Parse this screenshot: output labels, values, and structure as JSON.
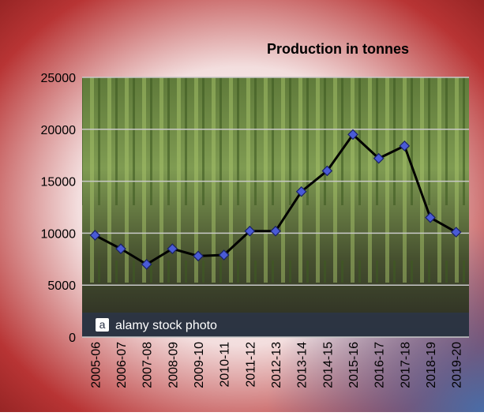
{
  "chart_data": {
    "type": "line",
    "title": "Production in tonnes",
    "categories": [
      "2005-06",
      "2006-07",
      "2007-08",
      "2008-09",
      "2009-10",
      "2010-11",
      "2011-12",
      "2012-13",
      "2013-14",
      "2014-15",
      "2015-16",
      "2016-17",
      "2017-18",
      "2018-19",
      "2019-20"
    ],
    "series": [
      {
        "color": "#000000",
        "marker_color": "#4a5bd6",
        "values": [
          9800,
          8500,
          7000,
          8500,
          7800,
          7900,
          10200,
          10200,
          14000,
          16000,
          19500,
          17200,
          18400,
          11500,
          10100
        ]
      }
    ],
    "ylim": [
      0,
      25000
    ],
    "yticks": [
      0,
      5000,
      10000,
      15000,
      20000,
      25000
    ],
    "grid": true,
    "watermark": "alamy stock photo"
  }
}
